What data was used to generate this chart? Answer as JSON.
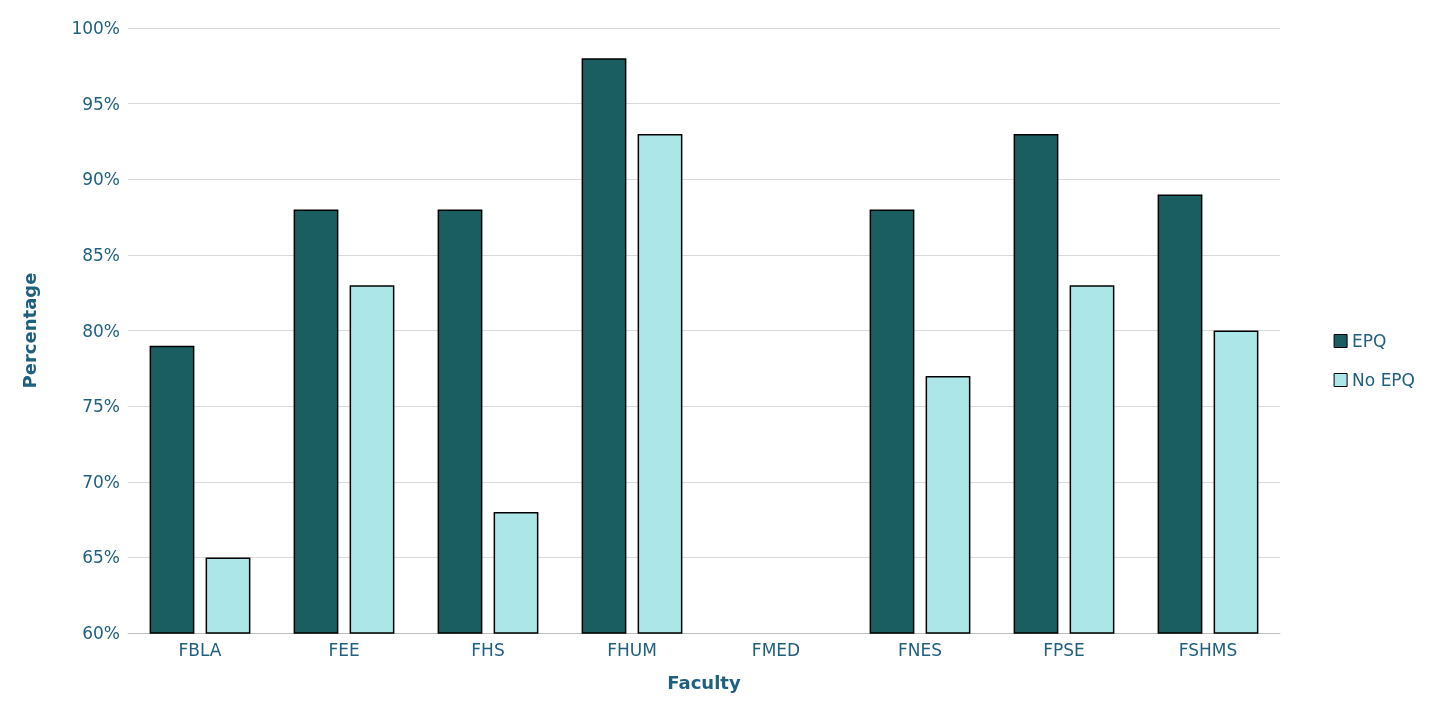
{
  "chart_data": {
    "type": "bar",
    "xlabel": "Faculty",
    "ylabel": "Percentage",
    "categories": [
      "FBLA",
      "FEE",
      "FHS",
      "FHUM",
      "FMED",
      "FNES",
      "FPSE",
      "FSHMS"
    ],
    "series": [
      {
        "name": "EPQ",
        "color": "#1b5e62",
        "values": [
          79,
          88,
          88,
          98,
          null,
          88,
          93,
          89
        ]
      },
      {
        "name": "No EPQ",
        "color": "#ade6e9",
        "values": [
          65,
          83,
          68,
          93,
          null,
          77,
          83,
          80
        ]
      }
    ],
    "ylim": [
      60,
      100
    ],
    "yticks": [
      {
        "value": 60,
        "label": "60%"
      },
      {
        "value": 65,
        "label": "65%"
      },
      {
        "value": 70,
        "label": "70%"
      },
      {
        "value": 75,
        "label": "75%"
      },
      {
        "value": 80,
        "label": "80%"
      },
      {
        "value": 85,
        "label": "85%"
      },
      {
        "value": 90,
        "label": "90%"
      },
      {
        "value": 95,
        "label": "95%"
      },
      {
        "value": 100,
        "label": "100%"
      }
    ],
    "grid": "y",
    "legend": "right"
  }
}
